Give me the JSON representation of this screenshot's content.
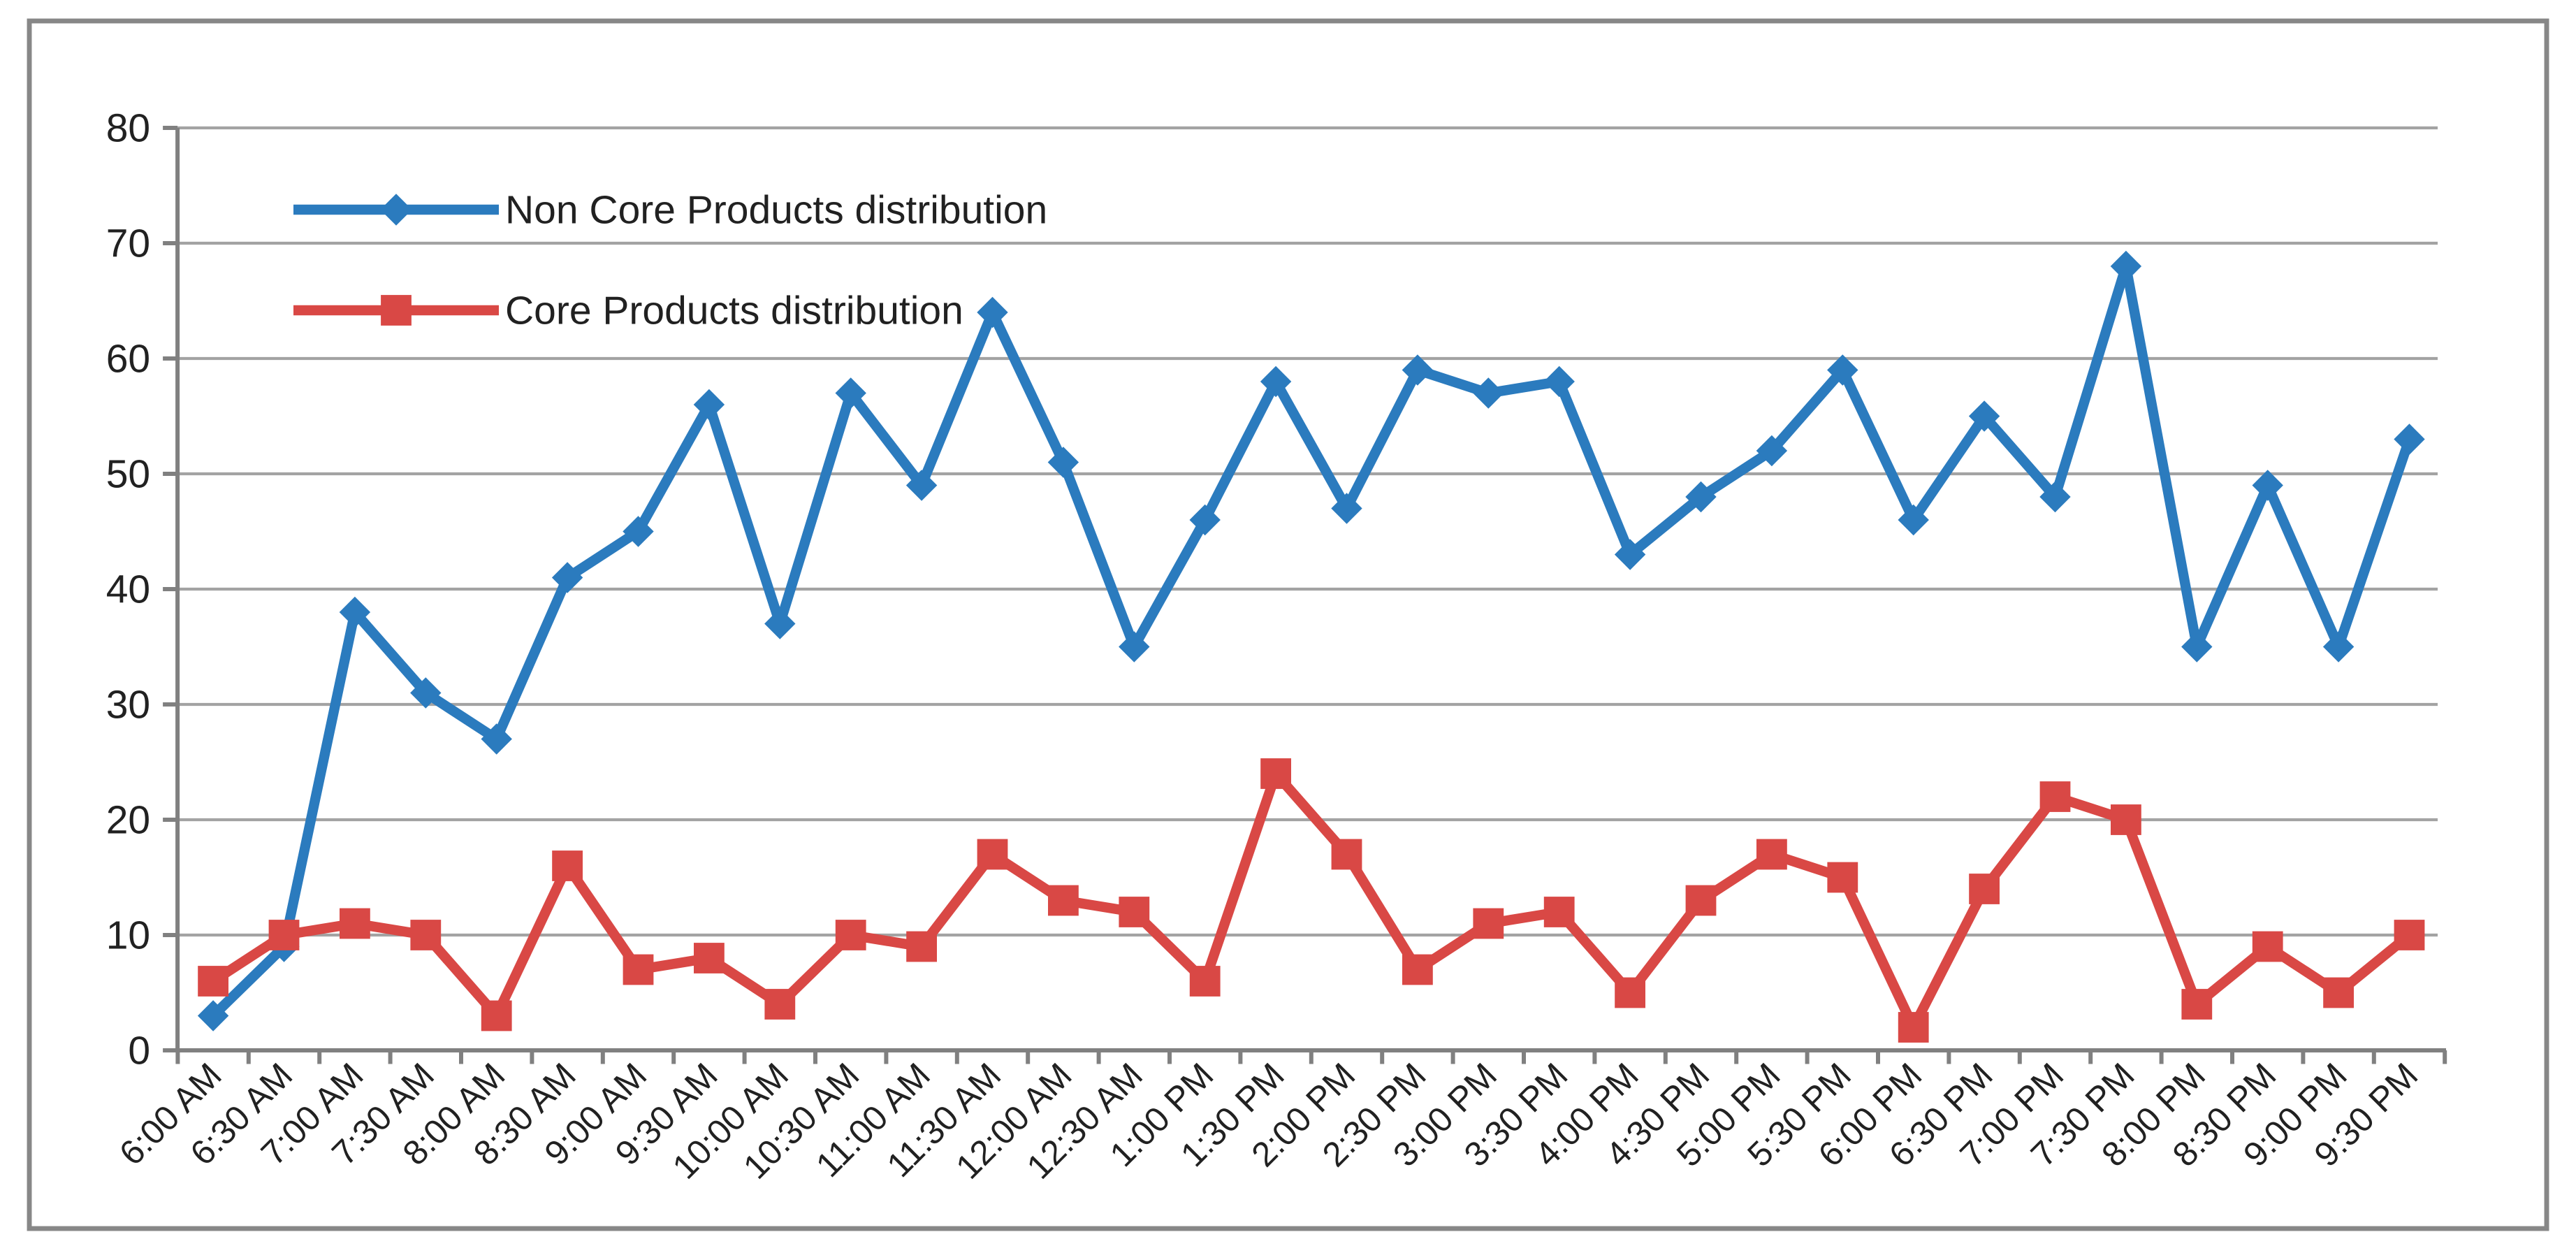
{
  "chart_data": {
    "type": "line",
    "title": "",
    "categories": [
      "6:00 AM",
      "6:30 AM",
      "7:00 AM",
      "7:30 AM",
      "8:00 AM",
      "8:30 AM",
      "9:00 AM",
      "9:30 AM",
      "10:00 AM",
      "10:30 AM",
      "11:00 AM",
      "11:30 AM",
      "12:00 AM",
      "12:30 AM",
      "1:00 PM",
      "1:30 PM",
      "2:00 PM",
      "2:30 PM",
      "3:00 PM",
      "3:30 PM",
      "4:00 PM",
      "4:30 PM",
      "5:00 PM",
      "5:30 PM",
      "6:00 PM",
      "6:30 PM",
      "7:00 PM",
      "7:30 PM",
      "8:00 PM",
      "8:30 PM",
      "9:00 PM",
      "9:30 PM"
    ],
    "series": [
      {
        "name": "Non Core Products distribution",
        "marker": "diamond",
        "color": "#2b7bbe",
        "values": [
          3,
          9,
          38,
          31,
          27,
          41,
          45,
          56,
          37,
          57,
          49,
          64,
          51,
          35,
          46,
          58,
          47,
          59,
          57,
          58,
          43,
          48,
          52,
          59,
          46,
          55,
          48,
          68,
          35,
          49,
          35,
          53
        ]
      },
      {
        "name": "Core Products distribution",
        "marker": "square",
        "color": "#d94845",
        "values": [
          6,
          10,
          11,
          10,
          3,
          16,
          7,
          8,
          4,
          10,
          9,
          17,
          13,
          12,
          6,
          24,
          17,
          7,
          11,
          12,
          5,
          13,
          17,
          15,
          2,
          14,
          22,
          20,
          4,
          9,
          5,
          10
        ]
      }
    ],
    "xlabel": "",
    "ylabel": "",
    "ylim": [
      0,
      80
    ],
    "yticks": [
      0,
      10,
      20,
      30,
      40,
      50,
      60,
      70,
      80
    ],
    "grid": "horizontal",
    "legend_position": "top-left-inside",
    "gridline_color": "#a3a3a3",
    "axis_color": "#808080",
    "frame_color": "#878787",
    "text_color": "#212121"
  }
}
